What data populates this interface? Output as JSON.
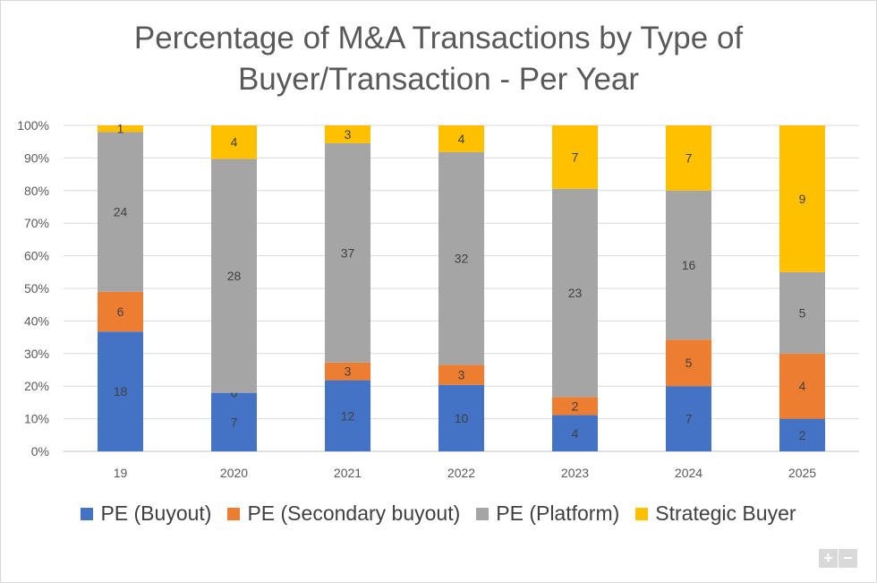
{
  "chart_data": {
    "type": "bar",
    "stacked": "percent",
    "title_line1": "Percentage of M&A Transactions by Type of",
    "title_line2": "Buyer/Transaction  - Per Year",
    "categories": [
      "19",
      "2020",
      "2021",
      "2022",
      "2023",
      "2024",
      "2025"
    ],
    "series": [
      {
        "name": "PE (Buyout)",
        "color": "#4472c4",
        "values": [
          18,
          7,
          12,
          10,
          4,
          7,
          2
        ]
      },
      {
        "name": "PE (Secondary buyout)",
        "color": "#ed7d31",
        "values": [
          6,
          0,
          3,
          3,
          2,
          5,
          4
        ]
      },
      {
        "name": "PE (Platform)",
        "color": "#a5a5a5",
        "values": [
          24,
          28,
          37,
          32,
          23,
          16,
          5
        ]
      },
      {
        "name": "Strategic Buyer",
        "color": "#ffc000",
        "values": [
          1,
          4,
          3,
          4,
          7,
          7,
          9
        ]
      }
    ],
    "ylim": [
      0,
      100
    ],
    "yticks": [
      "0%",
      "10%",
      "20%",
      "30%",
      "40%",
      "50%",
      "60%",
      "70%",
      "80%",
      "90%",
      "100%"
    ],
    "grid": true,
    "legend_position": "bottom"
  },
  "controls": {
    "zoom_in_label": "+",
    "zoom_out_label": "−"
  }
}
